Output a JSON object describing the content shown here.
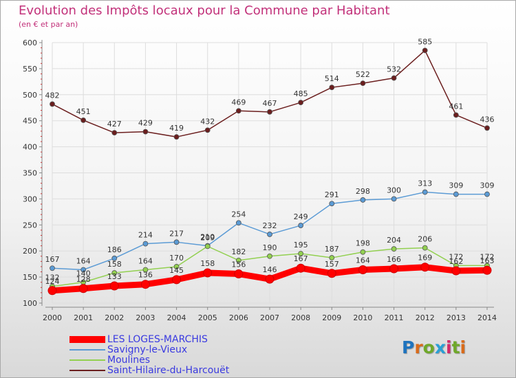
{
  "title": "Evolution des Impôts locaux pour la Commune par Habitant",
  "subtitle": "(en € et par an)",
  "logo_text": "Proxiti",
  "colors": {
    "title": "#c2317a",
    "legend_text": "#3a3ae0",
    "grid": "#dddddd",
    "logo": [
      "#1e73be",
      "#d96b1b",
      "#6fa82a",
      "#2a9fd6",
      "#d42a6a",
      "#6fa82a",
      "#d96b1b"
    ]
  },
  "chart_data": {
    "type": "line",
    "x": [
      2000,
      2001,
      2002,
      2003,
      2004,
      2005,
      2006,
      2007,
      2008,
      2009,
      2010,
      2011,
      2012,
      2013,
      2014
    ],
    "ylim": [
      100,
      600
    ],
    "yticks": [
      100,
      150,
      200,
      250,
      300,
      350,
      400,
      450,
      500,
      550,
      600
    ],
    "grid": true,
    "legend_position": "bottom-left",
    "series": [
      {
        "name": "LES LOGES-MARCHIS",
        "color": "#ff0000",
        "values": [
          124,
          128,
          133,
          136,
          145,
          158,
          156,
          146,
          167,
          157,
          164,
          166,
          169,
          162,
          163
        ],
        "labels": [
          "124",
          "128",
          "133",
          "136",
          "145",
          "158",
          "156",
          "146",
          "167",
          "157",
          "164",
          "166",
          "169",
          "162",
          "163"
        ]
      },
      {
        "name": "Savigny-le-Vieux",
        "color": "#5b9bd5",
        "values": [
          167,
          164,
          186,
          214,
          217,
          210,
          254,
          232,
          249,
          291,
          298,
          300,
          313,
          309,
          309
        ],
        "labels": [
          "167",
          "164",
          "186",
          "214",
          "217",
          "210",
          "254",
          "232",
          "249",
          "291",
          "298",
          "300",
          "313",
          "309",
          "309"
        ]
      },
      {
        "name": "Moulines",
        "color": "#92d050",
        "values": [
          132,
          140,
          158,
          164,
          170,
          209,
          182,
          190,
          195,
          187,
          198,
          204,
          206,
          172,
          172
        ],
        "labels": [
          "132",
          "140",
          "158",
          "164",
          "170",
          "209",
          "182",
          "190",
          "195",
          "187",
          "198",
          "204",
          "206",
          "172",
          "172"
        ]
      },
      {
        "name": "Saint-Hilaire-du-Harcouët",
        "color": "#6b1e1e",
        "values": [
          482,
          451,
          427,
          429,
          419,
          432,
          469,
          467,
          485,
          514,
          522,
          532,
          585,
          461,
          436
        ],
        "labels": [
          "482",
          "451",
          "427",
          "429",
          "419",
          "432",
          "469",
          "467",
          "485",
          "514",
          "522",
          "532",
          "585",
          "461",
          "436"
        ]
      }
    ]
  }
}
